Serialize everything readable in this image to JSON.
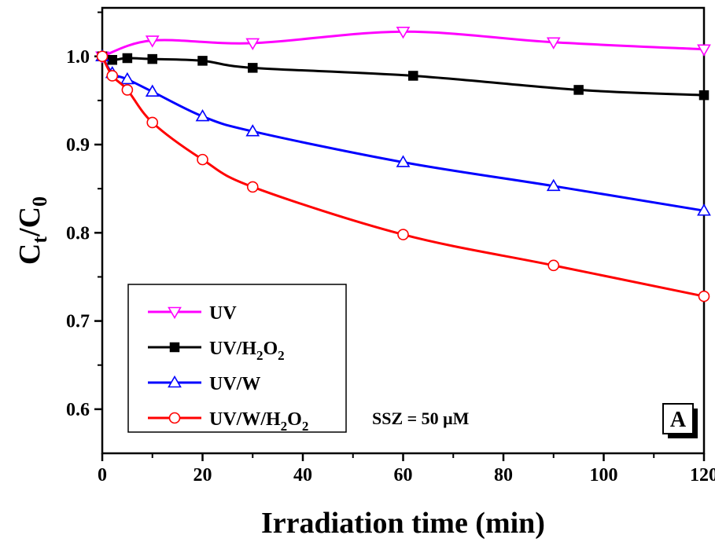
{
  "chart_data": {
    "type": "line",
    "xlabel": "Irradiation time (min)",
    "ylabel_main": "C",
    "ylabel_sub1": "t",
    "ylabel_mid": "/C",
    "ylabel_sub2": "0",
    "xlim": [
      0,
      120
    ],
    "ylim": [
      0.55,
      1.055
    ],
    "xticks": [
      0,
      20,
      40,
      60,
      80,
      100,
      120
    ],
    "yticks": [
      0.6,
      0.7,
      0.8,
      0.9,
      1.0
    ],
    "xtick_labels": [
      "0",
      "20",
      "40",
      "60",
      "80",
      "100",
      "120"
    ],
    "ytick_labels": [
      "0.6",
      "0.7",
      "0.8",
      "0.9",
      "1.0"
    ],
    "grid": false,
    "legend_position": "bottom-left",
    "series": [
      {
        "name": "UV",
        "legend_parts": [
          "UV"
        ],
        "color": "#ff00ff",
        "marker": "triangle-down-open",
        "x": [
          0,
          10,
          30,
          60,
          90,
          120
        ],
        "y": [
          1.0,
          1.018,
          1.015,
          1.028,
          1.016,
          1.008
        ]
      },
      {
        "name": "UV/H2O2",
        "legend_parts": [
          "UV/H",
          "2",
          "O",
          "2"
        ],
        "color": "#000000",
        "marker": "square-filled",
        "x": [
          0,
          2,
          5,
          10,
          20,
          30,
          62,
          95,
          120
        ],
        "y": [
          1.0,
          0.996,
          0.998,
          0.997,
          0.995,
          0.987,
          0.978,
          0.962,
          0.956
        ]
      },
      {
        "name": "UV/W",
        "legend_parts": [
          "UV/W"
        ],
        "color": "#0000ff",
        "marker": "triangle-up-open",
        "x": [
          0,
          2,
          5,
          10,
          20,
          30,
          60,
          90,
          120
        ],
        "y": [
          1.0,
          0.981,
          0.974,
          0.96,
          0.932,
          0.915,
          0.88,
          0.853,
          0.825
        ]
      },
      {
        "name": "UV/W/H2O2",
        "legend_parts": [
          "UV/W/H",
          "2",
          "O",
          "2"
        ],
        "color": "#ff0000",
        "marker": "circle-open",
        "x": [
          0,
          2,
          5,
          10,
          20,
          30,
          60,
          90,
          120
        ],
        "y": [
          1.0,
          0.978,
          0.962,
          0.925,
          0.883,
          0.852,
          0.798,
          0.763,
          0.728
        ]
      }
    ],
    "annotation": "SSZ = 50 μM",
    "panel_label": "A"
  }
}
